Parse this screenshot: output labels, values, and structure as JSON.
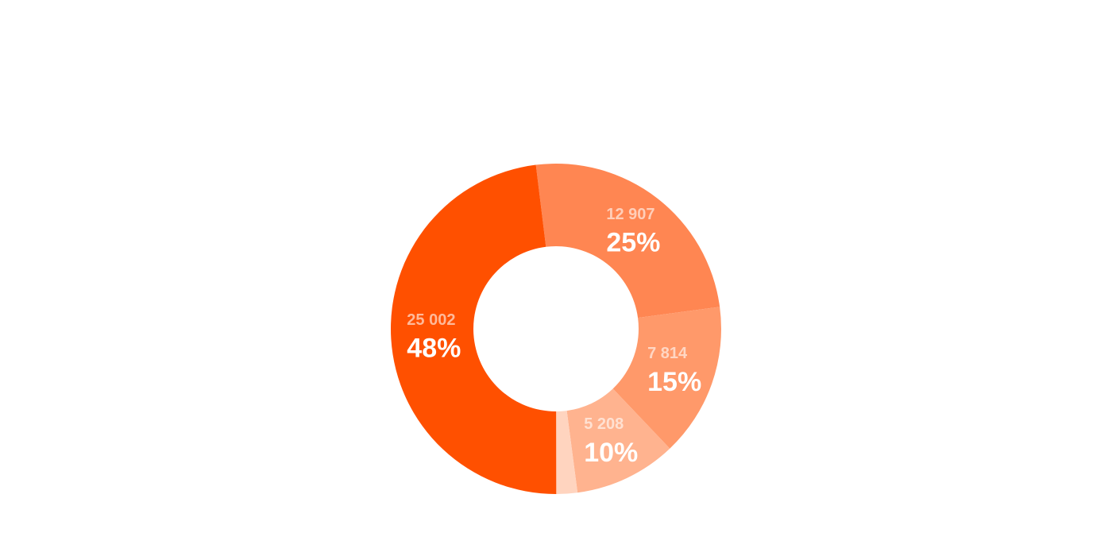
{
  "chart_data": {
    "type": "donut",
    "values": [
      12907,
      7814,
      5208,
      1070,
      25002
    ],
    "value_labels": [
      "12 907",
      "7 814",
      "5 208",
      null,
      "25 002"
    ],
    "percent_labels": [
      "25%",
      "15%",
      "10%",
      null,
      "48%"
    ],
    "colors": [
      "#ff8652",
      "#ff996a",
      "#ffb38f",
      "#ffd4bf",
      "#ff5000"
    ]
  }
}
